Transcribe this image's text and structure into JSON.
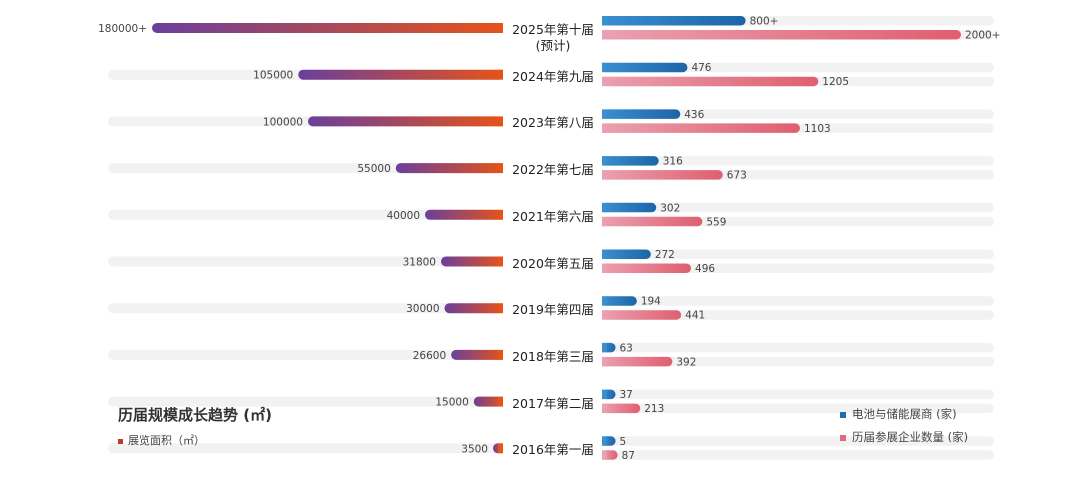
{
  "chart_data": {
    "type": "bar",
    "title": "历届规模成长趋势 (㎡)",
    "left": {
      "series_name": "展览面积（㎡）",
      "max": 180000,
      "values": [
        180000,
        105000,
        100000,
        55000,
        40000,
        31800,
        30000,
        26600,
        15000,
        3500
      ],
      "labels": [
        "180000+",
        "105000",
        "100000",
        "55000",
        "40000",
        "31800",
        "30000",
        "26600",
        "15000",
        "3500"
      ]
    },
    "categories": [
      "2025年第十届",
      "2024年第九届",
      "2023年第八届",
      "2022年第七届",
      "2021年第六届",
      "2020年第五届",
      "2019年第四届",
      "2018年第三届",
      "2017年第二届",
      "2016年第一届"
    ],
    "category_sub": [
      "(预计)",
      "",
      "",
      "",
      "",
      "",
      "",
      "",
      "",
      ""
    ],
    "series": [
      {
        "name": "电池与储能展商 (家)",
        "values": [
          800,
          476,
          436,
          316,
          302,
          272,
          194,
          63,
          37,
          5
        ],
        "labels": [
          "800+",
          "476",
          "436",
          "316",
          "302",
          "272",
          "194",
          "63",
          "37",
          "5"
        ],
        "color": "#1f6fb0"
      },
      {
        "name": "历届参展企业数量 (家)",
        "values": [
          2000,
          1205,
          1103,
          673,
          559,
          496,
          441,
          392,
          213,
          87
        ],
        "labels": [
          "2000+",
          "1205",
          "1103",
          "673",
          "559",
          "496",
          "441",
          "392",
          "213",
          "87"
        ],
        "color": "#e06a7e"
      }
    ],
    "colors": {
      "left_gradient_start": "#6a3f9c",
      "left_gradient_end": "#e5531a",
      "blue_start": "#3a8fd0",
      "blue_end": "#1c64a8",
      "pink_start": "#eaa0b0",
      "pink_end": "#df5f6f",
      "track": "#f2f2f2",
      "legend_left_swatch": "#c0392b"
    }
  }
}
